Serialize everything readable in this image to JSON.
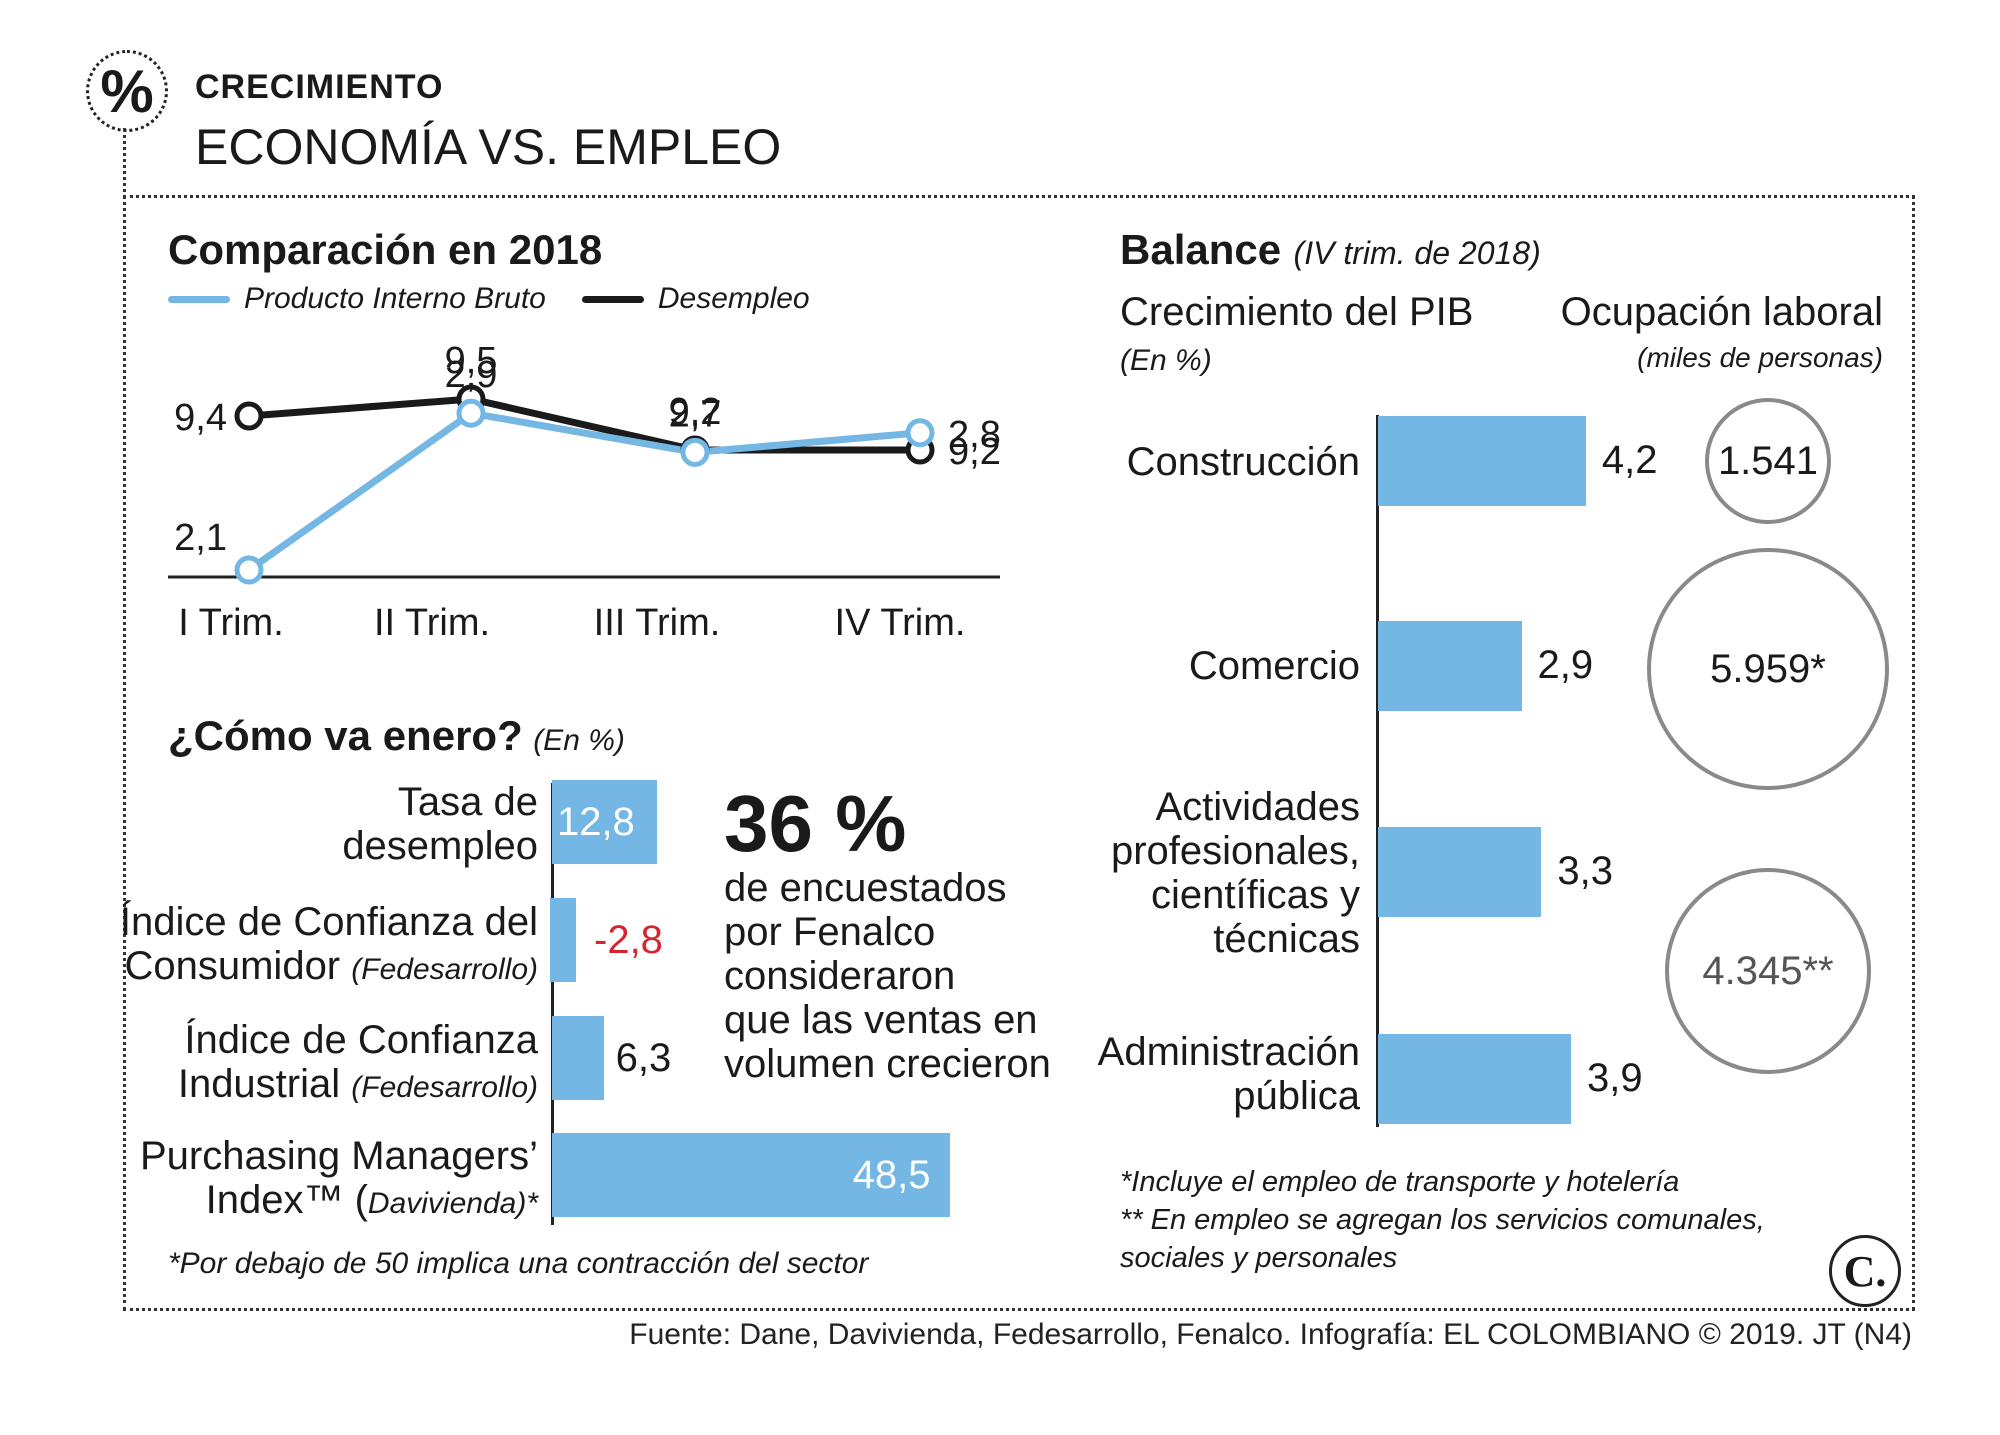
{
  "header": {
    "badge": "%",
    "kicker": "CRECIMIENTO",
    "title": "ECONOMÍA VS. EMPLEO"
  },
  "comparison": {
    "title": "Comparación en 2018",
    "legend": [
      {
        "label": "Producto Interno Bruto",
        "color": "#74b7e4"
      },
      {
        "label": "Desempleo",
        "color": "#1a1a1a"
      }
    ]
  },
  "january": {
    "title": "¿Cómo va enero?",
    "unit": "(En %)",
    "items": [
      {
        "label_line1": "Tasa de",
        "label_line2": "desempleo",
        "source": ""
      },
      {
        "label_line1": "Índice de Confianza del",
        "label_line2": "Consumidor",
        "source": "(Fedesarrollo)"
      },
      {
        "label_line1": "Índice de Confianza",
        "label_line2": "Industrial",
        "source": "(Fedesarrollo)"
      },
      {
        "label_line1": "Purchasing Managers’",
        "label_line2": "Index™ (",
        "source": "Davivienda)*"
      }
    ],
    "value_labels": [
      "12,8",
      "-2,8",
      "6,3",
      "48,5"
    ],
    "negative_color": "#d9232e",
    "footnote": "*Por debajo de 50 implica una contracción del sector"
  },
  "highlight": {
    "big": "36 %",
    "lines": [
      "de encuestados",
      "por Fenalco",
      "consideraron",
      "que las ventas en",
      "volumen crecieron"
    ]
  },
  "balance": {
    "title": "Balance",
    "period": "(IV trim. de 2018)",
    "pib_title": "Crecimiento del PIB",
    "pib_unit": "(En %)",
    "emp_title": "Ocupación laboral",
    "emp_unit": "(miles de personas)",
    "sectors": [
      {
        "lines": [
          "Construcción"
        ],
        "value_label": "4,2",
        "employment": "1.541"
      },
      {
        "lines": [
          "Comercio"
        ],
        "value_label": "2,9",
        "employment": "5.959*"
      },
      {
        "lines": [
          "Actividades",
          "profesionales,",
          "científicas y",
          "técnicas"
        ],
        "value_label": "3,3",
        "employment": "4.345**"
      },
      {
        "lines": [
          "Administración",
          "pública"
        ],
        "value_label": "3,9",
        "employment": ""
      }
    ],
    "notes": [
      "*Incluye el empleo de transporte y hotelería",
      "** En empleo se agregan los servicios comunales,",
      "sociales y personales"
    ]
  },
  "footer": {
    "logo": "C.",
    "source": "Fuente: Dane, Davivienda, Fedesarrollo, Fenalco. Infografía: EL COLOMBIANO © 2019. JT (N4)"
  },
  "chart_data": [
    {
      "type": "line",
      "title": "Comparación en 2018",
      "categories": [
        "I Trim.",
        "II Trim.",
        "III Trim.",
        "IV Trim."
      ],
      "series": [
        {
          "name": "Desempleo",
          "values": [
            9.4,
            9.5,
            9.2,
            9.2
          ],
          "labels": [
            "9,4",
            "9,5",
            "9,2",
            "9,2"
          ],
          "color": "#1a1a1a"
        },
        {
          "name": "Producto Interno Bruto",
          "values": [
            2.1,
            2.9,
            2.7,
            2.8
          ],
          "labels": [
            "2,1",
            "2,9",
            "2,7",
            "2,8"
          ],
          "color": "#74b7e4"
        }
      ],
      "legend": "top-left",
      "grid": false
    },
    {
      "type": "bar",
      "title": "¿Cómo va enero?",
      "orientation": "horizontal",
      "categories": [
        "Tasa de desempleo",
        "Índice de Confianza del Consumidor (Fedesarrollo)",
        "Índice de Confianza Industrial (Fedesarrollo)",
        "Purchasing Managers’ Index™ (Davivienda)*"
      ],
      "values": [
        12.8,
        -2.8,
        6.3,
        48.5
      ]
    },
    {
      "type": "bar",
      "title": "Crecimiento del PIB",
      "orientation": "horizontal",
      "categories": [
        "Construcción",
        "Comercio",
        "Actividades profesionales, científicas y técnicas",
        "Administración pública"
      ],
      "values": [
        4.2,
        2.9,
        3.3,
        3.9
      ]
    },
    {
      "type": "bubble",
      "title": "Ocupación laboral",
      "categories": [
        "Construcción",
        "Comercio",
        "Actividades profesionales, científicas y técnicas y Administración pública"
      ],
      "values": [
        1541,
        5959,
        4345
      ]
    }
  ]
}
